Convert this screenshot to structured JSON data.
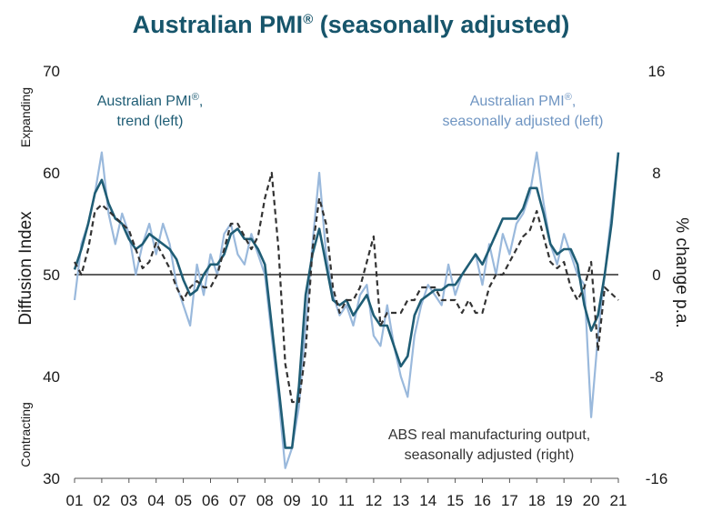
{
  "title": "Australian PMI",
  "title_mark": "®",
  "colors": {
    "title": "#17556b",
    "trend": "#1f5d75",
    "sa": "#9ab9dc",
    "abs": "#333333"
  },
  "chart_data": {
    "type": "line",
    "title": "Australian PMI® (seasonally adjusted)",
    "x": [
      2001,
      2002,
      2003,
      2004,
      2005,
      2006,
      2007,
      2008,
      2009,
      2010,
      2011,
      2012,
      2013,
      2014,
      2015,
      2016,
      2017,
      2018,
      2019,
      2020,
      2021
    ],
    "xticks": [
      "01",
      "02",
      "03",
      "04",
      "05",
      "06",
      "07",
      "08",
      "09",
      "10",
      "11",
      "12",
      "13",
      "14",
      "15",
      "16",
      "17",
      "18",
      "19",
      "20",
      "21"
    ],
    "xlim": [
      2001,
      2021
    ],
    "ylabel": "Diffusion Index",
    "ylim": [
      30,
      70
    ],
    "yticks": [
      "30",
      "40",
      "50",
      "60",
      "70"
    ],
    "y2label": "% change p.a.",
    "y2lim": [
      -16,
      16
    ],
    "y2ticks": [
      "-16",
      "-8",
      "0",
      "8",
      "16"
    ],
    "reference_line": 50,
    "top_side_label": "Expanding",
    "bottom_side_label": "Contracting",
    "series": [
      {
        "name": "Australian PMI®, seasonally adjusted (left)",
        "axis": "left",
        "x": [
          2001.0,
          2001.25,
          2001.5,
          2001.75,
          2002.0,
          2002.25,
          2002.5,
          2002.75,
          2003.0,
          2003.25,
          2003.5,
          2003.75,
          2004.0,
          2004.25,
          2004.5,
          2004.75,
          2005.0,
          2005.25,
          2005.5,
          2005.75,
          2006.0,
          2006.25,
          2006.5,
          2006.75,
          2007.0,
          2007.25,
          2007.5,
          2007.75,
          2008.0,
          2008.25,
          2008.5,
          2008.75,
          2009.0,
          2009.25,
          2009.5,
          2009.75,
          2010.0,
          2010.25,
          2010.5,
          2010.75,
          2011.0,
          2011.25,
          2011.5,
          2011.75,
          2012.0,
          2012.25,
          2012.5,
          2012.75,
          2013.0,
          2013.25,
          2013.5,
          2013.75,
          2014.0,
          2014.25,
          2014.5,
          2014.75,
          2015.0,
          2015.25,
          2015.5,
          2015.75,
          2016.0,
          2016.25,
          2016.5,
          2016.75,
          2017.0,
          2017.25,
          2017.5,
          2017.75,
          2018.0,
          2018.25,
          2018.5,
          2018.75,
          2019.0,
          2019.25,
          2019.5,
          2019.75,
          2020.0,
          2020.25,
          2020.5,
          2020.75,
          2021.0
        ],
        "values": [
          47.5,
          53,
          55,
          58,
          62,
          56,
          53,
          56,
          54,
          50,
          53,
          55,
          52,
          55,
          53,
          49,
          47,
          45,
          51,
          48,
          52,
          50,
          54,
          55,
          52,
          51,
          54,
          52,
          50,
          44,
          38,
          31,
          33,
          37,
          45,
          53,
          60,
          52,
          48,
          46,
          47,
          45,
          48,
          49,
          44,
          43,
          47,
          43,
          40,
          38,
          44,
          47,
          49,
          48,
          47,
          51,
          48,
          50,
          51,
          52,
          49,
          53,
          50,
          54,
          52,
          55,
          56,
          58,
          62,
          57,
          53,
          51,
          54,
          52,
          50,
          49,
          36,
          44,
          50,
          56,
          62
        ],
        "color": "#9ab9dc"
      },
      {
        "name": "Australian PMI®, trend (left)",
        "axis": "left",
        "x": [
          2001.0,
          2001.25,
          2001.5,
          2001.75,
          2002.0,
          2002.25,
          2002.5,
          2002.75,
          2003.0,
          2003.25,
          2003.5,
          2003.75,
          2004.0,
          2004.25,
          2004.5,
          2004.75,
          2005.0,
          2005.25,
          2005.5,
          2005.75,
          2006.0,
          2006.25,
          2006.5,
          2006.75,
          2007.0,
          2007.25,
          2007.5,
          2007.75,
          2008.0,
          2008.25,
          2008.5,
          2008.75,
          2009.0,
          2009.25,
          2009.5,
          2009.75,
          2010.0,
          2010.25,
          2010.5,
          2010.75,
          2011.0,
          2011.25,
          2011.5,
          2011.75,
          2012.0,
          2012.25,
          2012.5,
          2012.75,
          2013.0,
          2013.25,
          2013.5,
          2013.75,
          2014.0,
          2014.25,
          2014.5,
          2014.75,
          2015.0,
          2015.25,
          2015.5,
          2015.75,
          2016.0,
          2016.25,
          2016.5,
          2016.75,
          2017.0,
          2017.25,
          2017.5,
          2017.75,
          2018.0,
          2018.25,
          2018.5,
          2018.75,
          2019.0,
          2019.25,
          2019.5,
          2019.75,
          2020.0,
          2020.25,
          2020.5,
          2020.75,
          2021.0
        ],
        "values": [
          50.5,
          52.5,
          55,
          58,
          59.3,
          57,
          55.5,
          55,
          53.5,
          52.5,
          53,
          54,
          53.5,
          53,
          52.5,
          51.5,
          49.5,
          48,
          48.5,
          50,
          51,
          51,
          52,
          54,
          54.5,
          53.5,
          53.5,
          52.5,
          51,
          45,
          39,
          33,
          33,
          39,
          48,
          52,
          54.5,
          51,
          47.5,
          47,
          47.5,
          46,
          47,
          48,
          46,
          45,
          45,
          43,
          41,
          42,
          46,
          47.5,
          48,
          48.5,
          48.5,
          49,
          49,
          50,
          51,
          52,
          51,
          52.5,
          54,
          55.5,
          55.5,
          55.5,
          56.5,
          58.5,
          58.5,
          56,
          53,
          52,
          52.5,
          52.5,
          51,
          47,
          44.5,
          46,
          50,
          55,
          62
        ]
      },
      {
        "name": "ABS real manufacturing output, seasonally adjusted (right)",
        "axis": "right",
        "x": [
          2001.0,
          2001.25,
          2001.5,
          2001.75,
          2002.0,
          2002.25,
          2002.5,
          2002.75,
          2003.0,
          2003.25,
          2003.5,
          2003.75,
          2004.0,
          2004.25,
          2004.5,
          2004.75,
          2005.0,
          2005.25,
          2005.5,
          2005.75,
          2006.0,
          2006.25,
          2006.5,
          2006.75,
          2007.0,
          2007.25,
          2007.5,
          2007.75,
          2008.0,
          2008.25,
          2008.5,
          2008.75,
          2009.0,
          2009.25,
          2009.5,
          2009.75,
          2010.0,
          2010.25,
          2010.5,
          2010.75,
          2011.0,
          2011.25,
          2011.5,
          2011.75,
          2012.0,
          2012.25,
          2012.5,
          2012.75,
          2013.0,
          2013.25,
          2013.5,
          2013.75,
          2014.0,
          2014.25,
          2014.5,
          2014.75,
          2015.0,
          2015.25,
          2015.5,
          2015.75,
          2016.0,
          2016.25,
          2016.5,
          2016.75,
          2017.0,
          2017.25,
          2017.5,
          2017.75,
          2018.0,
          2018.25,
          2018.5,
          2018.75,
          2019.0,
          2019.25,
          2019.5,
          2019.75,
          2020.0,
          2020.25,
          2020.5,
          2020.75,
          2021.0
        ],
        "values": [
          1,
          0,
          2,
          5,
          5.5,
          5,
          4.5,
          4,
          3.5,
          2,
          0.5,
          1,
          2.5,
          1.5,
          0.5,
          -1,
          -2,
          -1,
          -0.5,
          -1,
          -1,
          0,
          2,
          4,
          4,
          3,
          2,
          3,
          6,
          8,
          2,
          -7,
          -10,
          -10,
          -6,
          2,
          6,
          4,
          -1,
          -3,
          -2,
          -2,
          -1,
          1,
          3,
          -4,
          -3,
          -3,
          -3,
          -2,
          -2,
          -1,
          -1,
          -1,
          -2,
          -2,
          -2,
          -3,
          -2,
          -3,
          -3,
          -1,
          0,
          0,
          1,
          2,
          3,
          3.5,
          5,
          3,
          1,
          0.5,
          1,
          -1,
          -2,
          -1,
          1,
          -6,
          -1,
          -1.5,
          -2
        ],
        "color": "#333333"
      }
    ],
    "annotations": [
      {
        "text": "Australian PMI®, trend (left)"
      },
      {
        "text": "Australian PMI®, seasonally adjusted (left)"
      },
      {
        "text": "ABS real manufacturing output, seasonally adjusted (right)"
      }
    ]
  }
}
